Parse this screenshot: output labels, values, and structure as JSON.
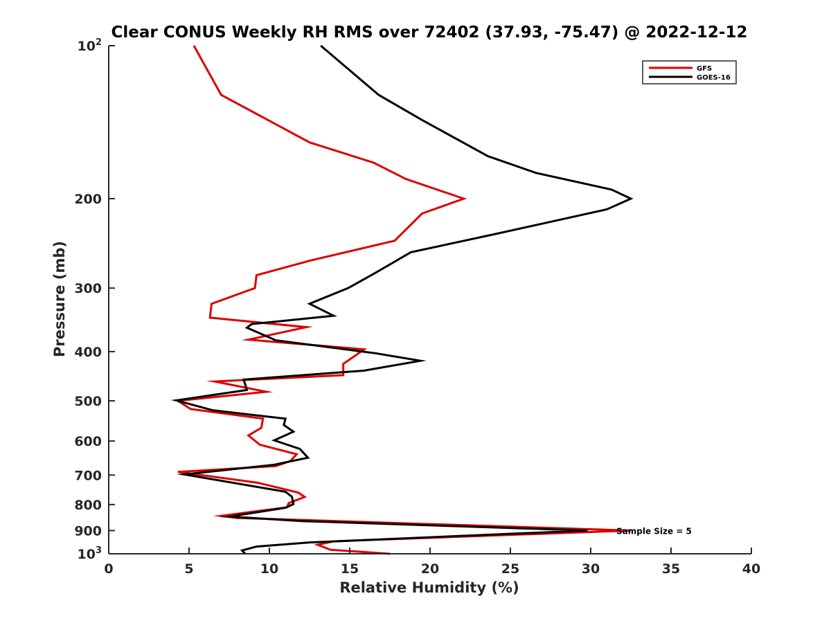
{
  "chart_data": {
    "type": "line",
    "title": "Clear CONUS Weekly RH RMS over 72402 (37.93, -75.47) @ 2022-12-12",
    "xlabel": "Relative Humidity (%)",
    "ylabel": "Pressure (mb)",
    "xlim": [
      0,
      40
    ],
    "ylim": [
      100,
      1000
    ],
    "yscale": "log",
    "yreversed": true,
    "grid": false,
    "x_ticks": [
      0,
      5,
      10,
      15,
      20,
      25,
      30,
      35,
      40
    ],
    "x_tick_labels": [
      "0",
      "5",
      "10",
      "15",
      "20",
      "25",
      "30",
      "35",
      "40"
    ],
    "y_ticks": [
      100,
      200,
      300,
      400,
      500,
      600,
      700,
      800,
      900,
      1000
    ],
    "y_tick_labels": [
      "10^2",
      "200",
      "300",
      "400",
      "500",
      "600",
      "700",
      "800",
      "900",
      "10^3"
    ],
    "legend_position": "top-right",
    "annotation": "Sample Size = 5",
    "annotation_at": {
      "x": 32.5,
      "p": 900
    },
    "series": [
      {
        "name": "GFS",
        "color": "#dd0000",
        "points": [
          [
            5.3,
            100
          ],
          [
            7.0,
            125
          ],
          [
            12.5,
            155
          ],
          [
            16.5,
            170
          ],
          [
            18.5,
            183
          ],
          [
            22.1,
            200
          ],
          [
            19.5,
            214
          ],
          [
            17.8,
            242
          ],
          [
            12.5,
            265
          ],
          [
            9.2,
            283
          ],
          [
            9.1,
            300
          ],
          [
            6.4,
            322
          ],
          [
            6.3,
            343
          ],
          [
            12.3,
            358
          ],
          [
            8.7,
            379
          ],
          [
            15.9,
            396
          ],
          [
            14.6,
            423
          ],
          [
            14.6,
            445
          ],
          [
            6.6,
            458
          ],
          [
            9.8,
            480
          ],
          [
            4.3,
            500
          ],
          [
            5.1,
            519
          ],
          [
            9.6,
            542
          ],
          [
            9.5,
            565
          ],
          [
            8.7,
            585
          ],
          [
            9.4,
            610
          ],
          [
            11.7,
            637
          ],
          [
            11.3,
            657
          ],
          [
            10.4,
            672
          ],
          [
            4.3,
            690
          ],
          [
            9.3,
            725
          ],
          [
            11.8,
            758
          ],
          [
            12.2,
            773
          ],
          [
            11.2,
            795
          ],
          [
            11.1,
            810
          ],
          [
            7.0,
            842
          ],
          [
            8.0,
            850
          ],
          [
            32.5,
            900
          ],
          [
            14.0,
            945
          ],
          [
            13.0,
            960
          ],
          [
            13.8,
            982
          ],
          [
            17.5,
            1000
          ]
        ]
      },
      {
        "name": "GOES-16",
        "color": "#000000",
        "points": [
          [
            13.2,
            100
          ],
          [
            16.8,
            125
          ],
          [
            19.5,
            140
          ],
          [
            23.6,
            165
          ],
          [
            26.6,
            178
          ],
          [
            31.3,
            192
          ],
          [
            32.5,
            200
          ],
          [
            31.0,
            210
          ],
          [
            24.0,
            235
          ],
          [
            18.8,
            255
          ],
          [
            16.6,
            280
          ],
          [
            14.9,
            300
          ],
          [
            12.5,
            322
          ],
          [
            14.0,
            340
          ],
          [
            8.9,
            353
          ],
          [
            8.6,
            359
          ],
          [
            10.4,
            380
          ],
          [
            16.6,
            403
          ],
          [
            19.4,
            417
          ],
          [
            15.9,
            436
          ],
          [
            8.4,
            454
          ],
          [
            8.6,
            476
          ],
          [
            4.2,
            499
          ],
          [
            6.5,
            522
          ],
          [
            11.0,
            542
          ],
          [
            10.9,
            558
          ],
          [
            11.5,
            575
          ],
          [
            10.3,
            598
          ],
          [
            11.9,
            622
          ],
          [
            12.4,
            647
          ],
          [
            10.3,
            668
          ],
          [
            4.7,
            698
          ],
          [
            11.0,
            755
          ],
          [
            11.4,
            772
          ],
          [
            11.5,
            798
          ],
          [
            11.0,
            812
          ],
          [
            7.5,
            845
          ],
          [
            12.0,
            862
          ],
          [
            29.8,
            900
          ],
          [
            12.5,
            950
          ],
          [
            9.2,
            968
          ],
          [
            8.3,
            985
          ],
          [
            8.5,
            1000
          ]
        ]
      }
    ]
  }
}
